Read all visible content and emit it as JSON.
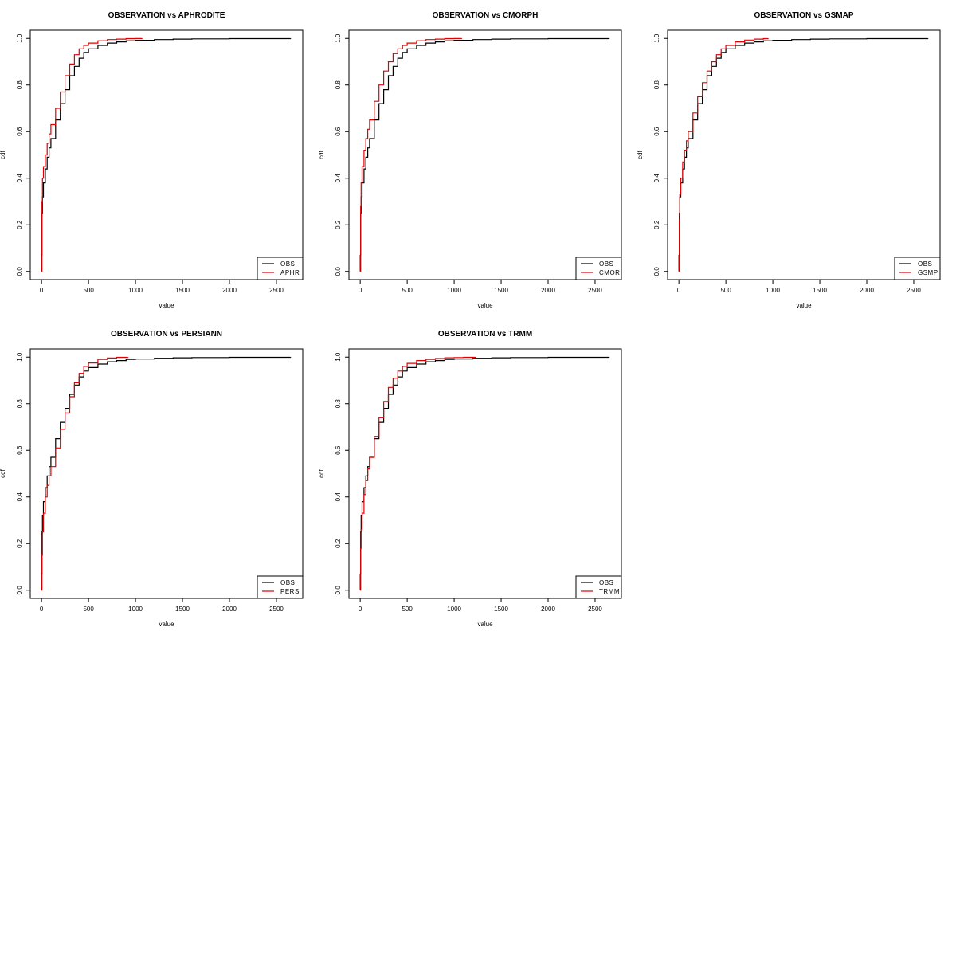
{
  "chart_data": [
    {
      "type": "line",
      "title": "OBSERVATION vs APHRODITE",
      "xlabel": "value",
      "ylabel": "cdf",
      "xlim": [
        -120,
        2780
      ],
      "ylim": [
        -0.035,
        1.035
      ],
      "xticks": [
        0,
        500,
        1000,
        1500,
        2000,
        2500
      ],
      "yticks": [
        0.0,
        0.2,
        0.4,
        0.6,
        0.8,
        1.0
      ],
      "legend": "bottom-right",
      "series": [
        {
          "name": "OBS",
          "color": "#000000",
          "x": [
            0,
            5,
            10,
            20,
            40,
            60,
            80,
            100,
            150,
            200,
            250,
            300,
            350,
            400,
            450,
            500,
            600,
            700,
            800,
            900,
            1000,
            1200,
            1400,
            1600,
            2000,
            2650
          ],
          "y": [
            0.07,
            0.25,
            0.32,
            0.38,
            0.44,
            0.49,
            0.53,
            0.57,
            0.65,
            0.72,
            0.78,
            0.84,
            0.88,
            0.915,
            0.94,
            0.955,
            0.97,
            0.98,
            0.985,
            0.99,
            0.992,
            0.995,
            0.997,
            0.998,
            0.999,
            1.0
          ]
        },
        {
          "name": "APHR",
          "color": "#e00000",
          "x": [
            0,
            5,
            10,
            20,
            40,
            60,
            80,
            100,
            150,
            200,
            250,
            300,
            350,
            400,
            450,
            500,
            600,
            700,
            800,
            900,
            1000,
            1070
          ],
          "y": [
            0.0,
            0.3,
            0.4,
            0.45,
            0.5,
            0.55,
            0.59,
            0.63,
            0.7,
            0.77,
            0.84,
            0.89,
            0.93,
            0.955,
            0.97,
            0.98,
            0.99,
            0.995,
            0.997,
            0.999,
            0.9995,
            1.0
          ]
        }
      ]
    },
    {
      "type": "line",
      "title": "OBSERVATION vs CMORPH",
      "xlabel": "value",
      "ylabel": "cdf",
      "xlim": [
        -120,
        2780
      ],
      "ylim": [
        -0.035,
        1.035
      ],
      "xticks": [
        0,
        500,
        1000,
        1500,
        2000,
        2500
      ],
      "yticks": [
        0.0,
        0.2,
        0.4,
        0.6,
        0.8,
        1.0
      ],
      "legend": "bottom-right",
      "series": [
        {
          "name": "OBS",
          "color": "#000000",
          "x": [
            0,
            5,
            10,
            20,
            40,
            60,
            80,
            100,
            150,
            200,
            250,
            300,
            350,
            400,
            450,
            500,
            600,
            700,
            800,
            900,
            1000,
            1200,
            1400,
            1600,
            2000,
            2650
          ],
          "y": [
            0.07,
            0.25,
            0.32,
            0.38,
            0.44,
            0.49,
            0.53,
            0.57,
            0.65,
            0.72,
            0.78,
            0.84,
            0.88,
            0.915,
            0.94,
            0.955,
            0.97,
            0.98,
            0.985,
            0.99,
            0.992,
            0.995,
            0.997,
            0.998,
            0.999,
            1.0
          ]
        },
        {
          "name": "CMOR",
          "color": "#e00000",
          "x": [
            0,
            5,
            10,
            20,
            40,
            60,
            80,
            100,
            150,
            200,
            250,
            300,
            350,
            400,
            450,
            500,
            600,
            700,
            800,
            900,
            1000,
            1080
          ],
          "y": [
            0.0,
            0.28,
            0.38,
            0.45,
            0.52,
            0.57,
            0.61,
            0.65,
            0.73,
            0.8,
            0.86,
            0.9,
            0.935,
            0.955,
            0.97,
            0.98,
            0.99,
            0.995,
            0.997,
            0.999,
            0.9995,
            1.0
          ]
        }
      ]
    },
    {
      "type": "line",
      "title": "OBSERVATION vs GSMAP",
      "xlabel": "value",
      "ylabel": "cdf",
      "xlim": [
        -120,
        2780
      ],
      "ylim": [
        -0.035,
        1.035
      ],
      "xticks": [
        0,
        500,
        1000,
        1500,
        2000,
        2500
      ],
      "yticks": [
        0.0,
        0.2,
        0.4,
        0.6,
        0.8,
        1.0
      ],
      "legend": "bottom-right",
      "series": [
        {
          "name": "OBS",
          "color": "#000000",
          "x": [
            0,
            5,
            10,
            20,
            40,
            60,
            80,
            100,
            150,
            200,
            250,
            300,
            350,
            400,
            450,
            500,
            600,
            700,
            800,
            900,
            1000,
            1200,
            1400,
            1600,
            2000,
            2650
          ],
          "y": [
            0.07,
            0.25,
            0.32,
            0.38,
            0.44,
            0.49,
            0.53,
            0.57,
            0.65,
            0.72,
            0.78,
            0.84,
            0.88,
            0.915,
            0.94,
            0.955,
            0.97,
            0.98,
            0.985,
            0.99,
            0.992,
            0.995,
            0.997,
            0.998,
            0.999,
            1.0
          ]
        },
        {
          "name": "GSMP",
          "color": "#e00000",
          "x": [
            0,
            5,
            10,
            20,
            40,
            60,
            80,
            100,
            150,
            200,
            250,
            300,
            350,
            400,
            450,
            500,
            600,
            700,
            800,
            900,
            950
          ],
          "y": [
            0.0,
            0.22,
            0.33,
            0.4,
            0.47,
            0.52,
            0.56,
            0.6,
            0.68,
            0.75,
            0.81,
            0.86,
            0.9,
            0.93,
            0.955,
            0.97,
            0.985,
            0.993,
            0.997,
            0.999,
            1.0
          ]
        }
      ]
    },
    {
      "type": "line",
      "title": "OBSERVATION vs PERSIANN",
      "xlabel": "value",
      "ylabel": "cdf",
      "xlim": [
        -120,
        2780
      ],
      "ylim": [
        -0.035,
        1.035
      ],
      "xticks": [
        0,
        500,
        1000,
        1500,
        2000,
        2500
      ],
      "yticks": [
        0.0,
        0.2,
        0.4,
        0.6,
        0.8,
        1.0
      ],
      "legend": "bottom-right",
      "series": [
        {
          "name": "OBS",
          "color": "#000000",
          "x": [
            0,
            5,
            10,
            20,
            40,
            60,
            80,
            100,
            150,
            200,
            250,
            300,
            350,
            400,
            450,
            500,
            600,
            700,
            800,
            900,
            1000,
            1200,
            1400,
            1600,
            2000,
            2650
          ],
          "y": [
            0.07,
            0.25,
            0.32,
            0.38,
            0.44,
            0.49,
            0.53,
            0.57,
            0.65,
            0.72,
            0.78,
            0.84,
            0.88,
            0.915,
            0.94,
            0.955,
            0.97,
            0.98,
            0.985,
            0.99,
            0.992,
            0.995,
            0.997,
            0.998,
            0.999,
            1.0
          ]
        },
        {
          "name": "PERS",
          "color": "#e00000",
          "x": [
            0,
            5,
            10,
            20,
            40,
            60,
            80,
            100,
            150,
            200,
            250,
            300,
            350,
            400,
            450,
            500,
            600,
            700,
            800,
            920
          ],
          "y": [
            0.0,
            0.15,
            0.25,
            0.33,
            0.4,
            0.45,
            0.49,
            0.53,
            0.61,
            0.69,
            0.76,
            0.83,
            0.89,
            0.93,
            0.96,
            0.975,
            0.99,
            0.996,
            0.999,
            1.0
          ]
        }
      ]
    },
    {
      "type": "line",
      "title": "OBSERVATION vs TRMM",
      "xlabel": "value",
      "ylabel": "cdf",
      "xlim": [
        -120,
        2780
      ],
      "ylim": [
        -0.035,
        1.035
      ],
      "xticks": [
        0,
        500,
        1000,
        1500,
        2000,
        2500
      ],
      "yticks": [
        0.0,
        0.2,
        0.4,
        0.6,
        0.8,
        1.0
      ],
      "legend": "bottom-right",
      "series": [
        {
          "name": "OBS",
          "color": "#000000",
          "x": [
            0,
            5,
            10,
            20,
            40,
            60,
            80,
            100,
            150,
            200,
            250,
            300,
            350,
            400,
            450,
            500,
            600,
            700,
            800,
            900,
            1000,
            1200,
            1400,
            1600,
            2000,
            2650
          ],
          "y": [
            0.07,
            0.25,
            0.32,
            0.38,
            0.44,
            0.49,
            0.53,
            0.57,
            0.65,
            0.72,
            0.78,
            0.84,
            0.88,
            0.915,
            0.94,
            0.955,
            0.97,
            0.98,
            0.985,
            0.99,
            0.992,
            0.995,
            0.997,
            0.998,
            0.999,
            1.0
          ]
        },
        {
          "name": "TRMM",
          "color": "#e00000",
          "x": [
            0,
            5,
            10,
            20,
            40,
            60,
            80,
            100,
            150,
            200,
            250,
            300,
            350,
            400,
            450,
            500,
            600,
            700,
            800,
            900,
            1000,
            1100,
            1230
          ],
          "y": [
            0.0,
            0.18,
            0.26,
            0.33,
            0.41,
            0.47,
            0.52,
            0.57,
            0.66,
            0.74,
            0.81,
            0.87,
            0.91,
            0.94,
            0.96,
            0.973,
            0.985,
            0.99,
            0.994,
            0.997,
            0.998,
            0.999,
            1.0
          ]
        }
      ]
    }
  ]
}
